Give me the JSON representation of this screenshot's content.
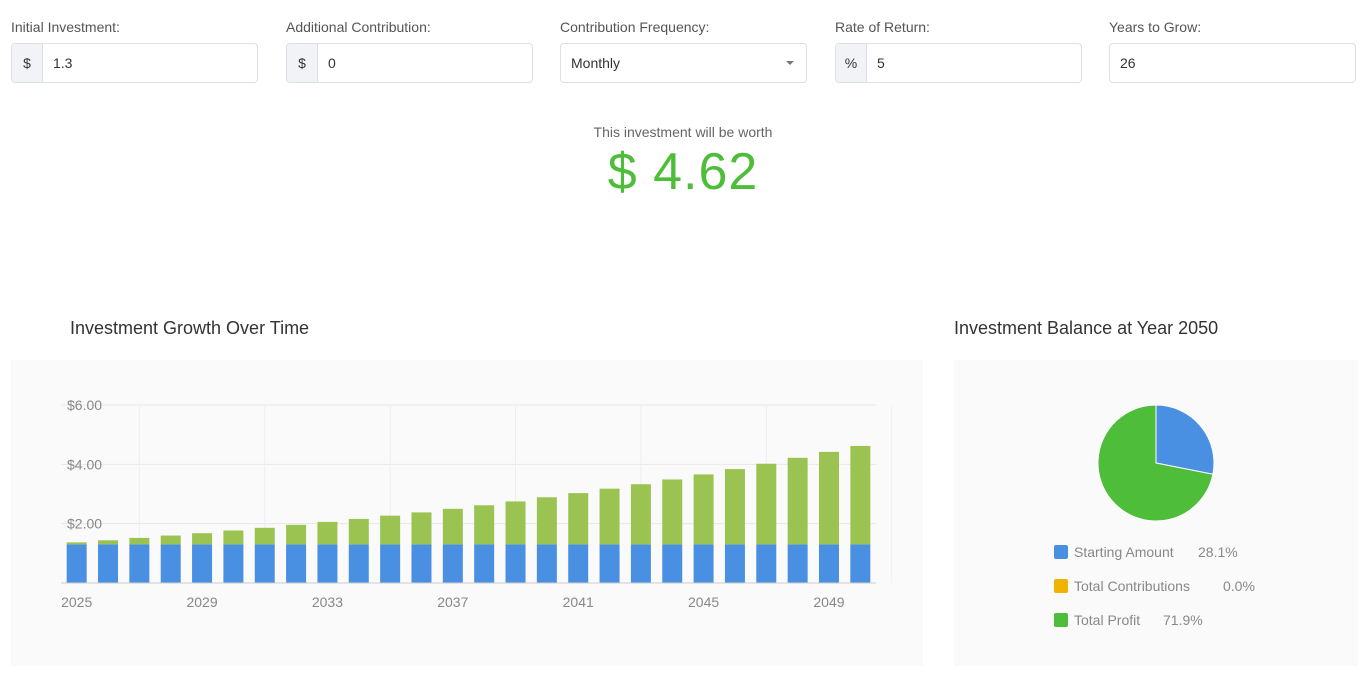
{
  "form": {
    "initial": {
      "label": "Initial Investment:",
      "prefix": "$",
      "value": "1.3"
    },
    "additional": {
      "label": "Additional Contribution:",
      "prefix": "$",
      "value": "0"
    },
    "frequency": {
      "label": "Contribution Frequency:",
      "value": "Monthly"
    },
    "rate": {
      "label": "Rate of Return:",
      "prefix": "%",
      "value": "5"
    },
    "years": {
      "label": "Years to Grow:",
      "value": "26"
    }
  },
  "summary": {
    "label": "This investment will be worth",
    "value": "$ 4.62"
  },
  "growth": {
    "title": "Investment Growth Over Time"
  },
  "balance": {
    "title": "Investment Balance at Year 2050"
  },
  "colors": {
    "starting": "#4a90e2",
    "contributions": "#f0b400",
    "profit_bar": "#9bc352",
    "profit_pie": "#4dbd3a"
  },
  "chart_data": [
    {
      "type": "bar",
      "stacked": true,
      "categories": [
        "2025",
        "2026",
        "2027",
        "2028",
        "2029",
        "2030",
        "2031",
        "2032",
        "2033",
        "2034",
        "2035",
        "2036",
        "2037",
        "2038",
        "2039",
        "2040",
        "2041",
        "2042",
        "2043",
        "2044",
        "2045",
        "2046",
        "2047",
        "2048",
        "2049",
        "2050"
      ],
      "x_tick_labels": [
        "2025",
        "2029",
        "2033",
        "2037",
        "2041",
        "2045",
        "2049"
      ],
      "y_tick_labels": [
        "$6.00",
        "$4.00",
        "$2.00"
      ],
      "ylim": [
        0,
        6
      ],
      "series": [
        {
          "values": [
            1.3,
            1.3,
            1.3,
            1.3,
            1.3,
            1.3,
            1.3,
            1.3,
            1.3,
            1.3,
            1.3,
            1.3,
            1.3,
            1.3,
            1.3,
            1.3,
            1.3,
            1.3,
            1.3,
            1.3,
            1.3,
            1.3,
            1.3,
            1.3,
            1.3,
            1.3
          ]
        },
        {
          "values": [
            0.07,
            0.14,
            0.22,
            0.3,
            0.38,
            0.47,
            0.56,
            0.66,
            0.76,
            0.86,
            0.97,
            1.08,
            1.2,
            1.32,
            1.45,
            1.59,
            1.73,
            1.88,
            2.03,
            2.19,
            2.36,
            2.54,
            2.72,
            2.92,
            3.12,
            3.32
          ]
        }
      ]
    },
    {
      "type": "pie",
      "slices": [
        {
          "label": "Starting Amount",
          "pct": "28.1%",
          "value": 28.1
        },
        {
          "label": "Total Contributions",
          "pct": "0.0%",
          "value": 0.0
        },
        {
          "label": "Total Profit",
          "pct": "71.9%",
          "value": 71.9
        }
      ]
    }
  ]
}
